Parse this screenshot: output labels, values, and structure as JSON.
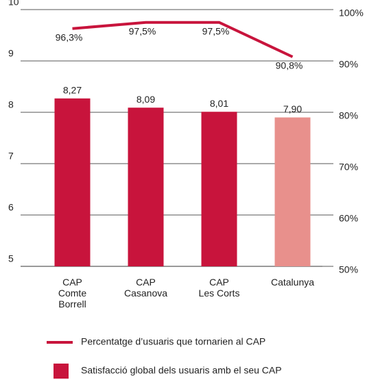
{
  "chart_data": {
    "type": "bar",
    "categories": [
      "CAP\nComte\nBorrell",
      "CAP\nCasanova",
      "CAP\nLes Corts",
      "Catalunya"
    ],
    "series": [
      {
        "name": "Percentatge d’usuaris que tornarien al CAP",
        "type": "line",
        "axis": "y2",
        "color": "#c8143c",
        "values": [
          96.3,
          97.5,
          97.5,
          90.8
        ],
        "value_labels": [
          "96,3%",
          "97,5%",
          "97,5%",
          "90,8%"
        ]
      },
      {
        "name": "Satisfacció global dels usuaris amb el seu CAP",
        "type": "bar",
        "color": "#c8143c",
        "colors": [
          "#c8143c",
          "#c8143c",
          "#c8143c",
          "#e8908c"
        ],
        "values": [
          8.27,
          8.09,
          8.01,
          7.9
        ],
        "value_labels": [
          "8,27",
          "8,09",
          "8,01",
          "7,90"
        ]
      }
    ],
    "ylim": [
      5,
      10
    ],
    "yticks": [
      5,
      6,
      7,
      8,
      9,
      10
    ],
    "y2lim": [
      50,
      100
    ],
    "y2ticks": [
      {
        "value": 50,
        "label": "50%"
      },
      {
        "value": 60,
        "label": "60%"
      },
      {
        "value": 70,
        "label": "70%"
      },
      {
        "value": 80,
        "label": "80%"
      },
      {
        "value": 90,
        "label": "90%"
      },
      {
        "value": 100,
        "label": "100%"
      }
    ],
    "grid": true
  }
}
